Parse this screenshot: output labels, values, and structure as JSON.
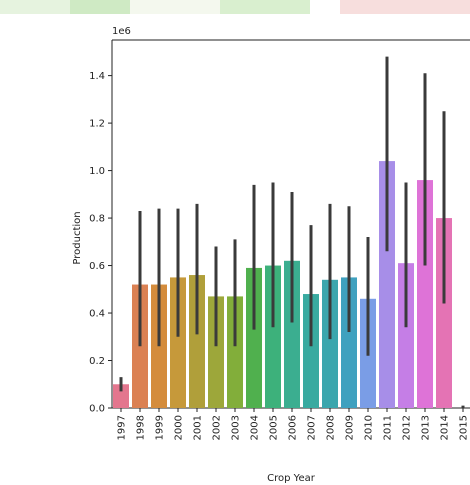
{
  "chart_data": {
    "type": "bar",
    "title": "",
    "xlabel": "Crop Year",
    "ylabel": "Production",
    "y_offset_label": "1e6",
    "ylim": [
      0,
      1.55
    ],
    "yticks": [
      "0.0",
      "0.2",
      "0.4",
      "0.6",
      "0.8",
      "1.0",
      "1.2",
      "1.4"
    ],
    "ytick_values": [
      0.0,
      0.2,
      0.4,
      0.6,
      0.8,
      1.0,
      1.2,
      1.4
    ],
    "grid": false,
    "categories": [
      "1997",
      "1998",
      "1999",
      "2000",
      "2001",
      "2002",
      "2003",
      "2004",
      "2005",
      "2006",
      "2007",
      "2008",
      "2009",
      "2010",
      "2011",
      "2012",
      "2013",
      "2014",
      "2015"
    ],
    "values": [
      0.1,
      0.52,
      0.52,
      0.55,
      0.56,
      0.47,
      0.47,
      0.59,
      0.6,
      0.62,
      0.48,
      0.54,
      0.55,
      0.46,
      1.04,
      0.61,
      0.96,
      0.8,
      0.0
    ],
    "ci_low": [
      0.07,
      0.26,
      0.26,
      0.3,
      0.31,
      0.26,
      0.26,
      0.33,
      0.34,
      0.36,
      0.26,
      0.29,
      0.32,
      0.22,
      0.66,
      0.34,
      0.6,
      0.44,
      0.0
    ],
    "ci_high": [
      0.13,
      0.83,
      0.84,
      0.84,
      0.86,
      0.68,
      0.71,
      0.94,
      0.95,
      0.91,
      0.77,
      0.86,
      0.85,
      0.72,
      1.48,
      0.95,
      1.41,
      1.25,
      0.01
    ],
    "colors": [
      "#e3768e",
      "#db8153",
      "#d48c3c",
      "#c6993a",
      "#b09f3a",
      "#9da73a",
      "#82ae3a",
      "#50b04e",
      "#3db17b",
      "#3bae90",
      "#39aaa0",
      "#3ba6ad",
      "#3fa1bf",
      "#7a9de6",
      "#a78ee8",
      "#c57ee6",
      "#de73d7",
      "#e473b4",
      "#e3768e"
    ],
    "error_bar_color": "#3a3a3a"
  }
}
